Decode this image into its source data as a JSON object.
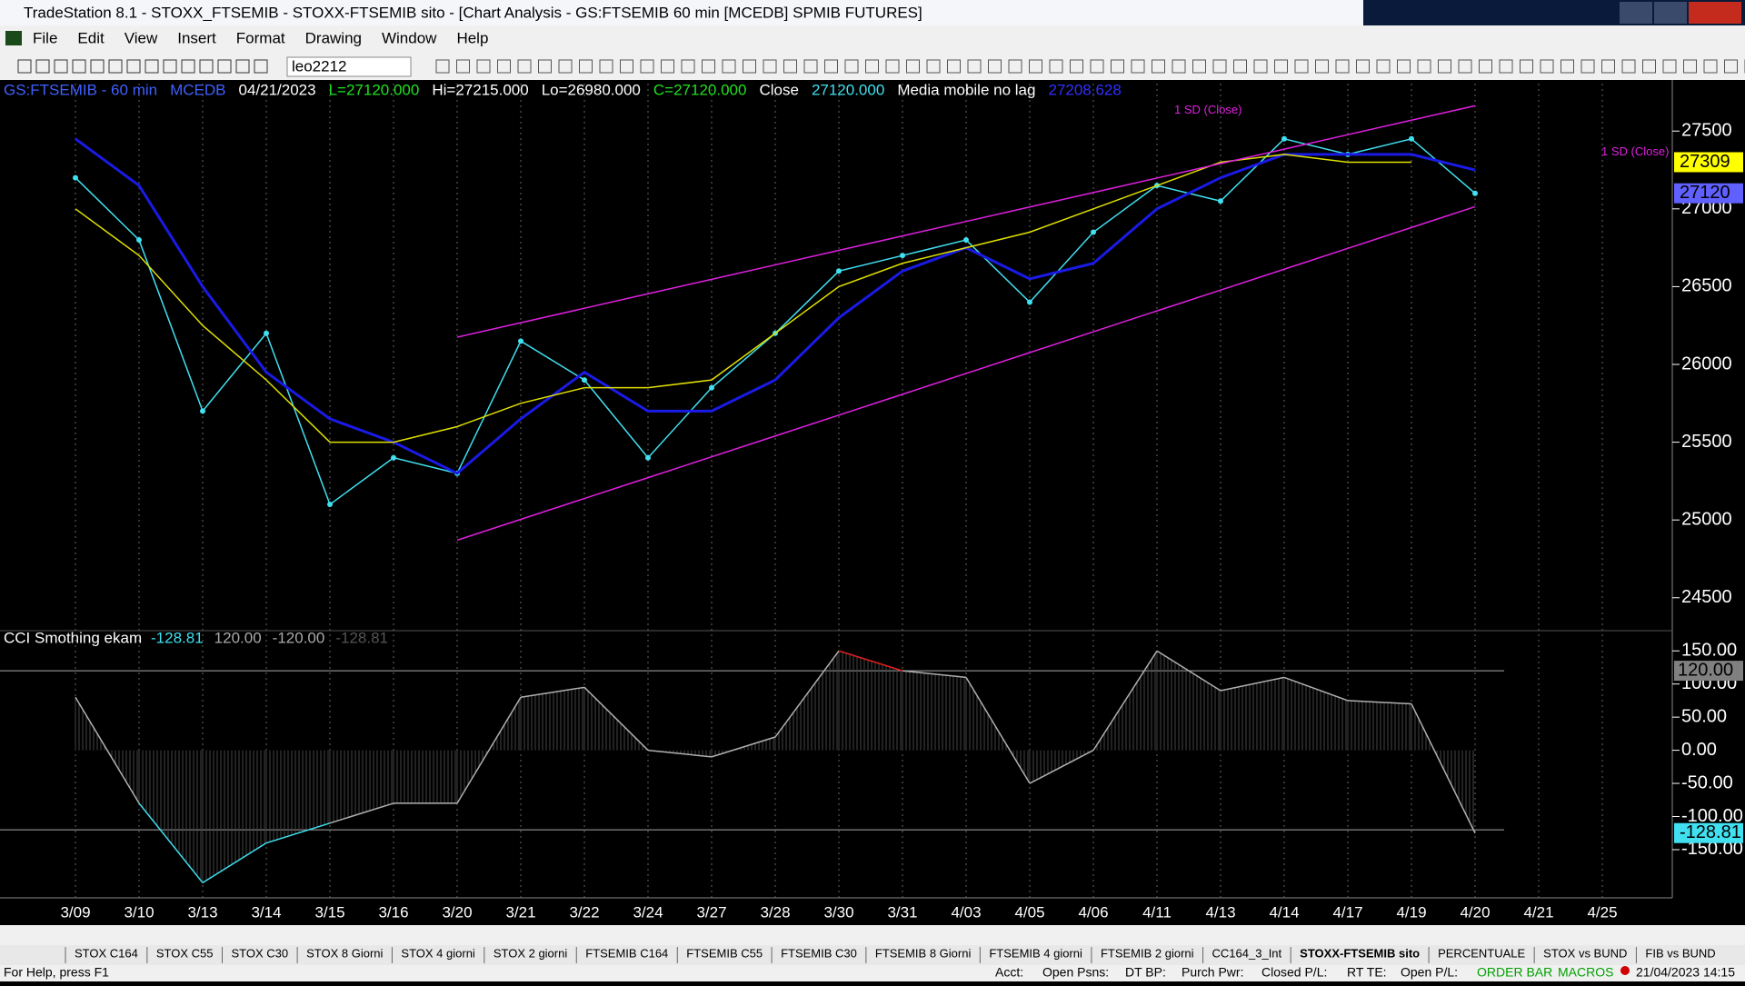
{
  "window": {
    "title": "TradeStation 8.1 - STOXX_FTSEMIB - STOXX-FTSEMIB sito - [Chart Analysis - GS:FTSEMIB  60 min  [MCEDB] SPMIB FUTURES]",
    "menu": [
      "File",
      "Edit",
      "View",
      "Insert",
      "Format",
      "Drawing",
      "Window",
      "Help"
    ],
    "symbol_box": "leo2212",
    "tabs": [
      "STOX C164",
      "STOX C55",
      "STOX  C30",
      "STOX  8 Giorni",
      "STOX 4 giorni",
      "STOX  2 giorni",
      "FTSEMIB C164",
      "FTSEMIB C55",
      "FTSEMIB C30",
      "FTSEMIB  8 Giorni",
      "FTSEMIB  4 giorni",
      "FTSEMIB  2 giorni",
      "CC164_3_Int",
      "STOXX-FTSEMIB sito",
      "PERCENTUALE",
      "STOX vs BUND",
      "FIB vs BUND"
    ],
    "active_tab": "STOXX-FTSEMIB sito",
    "status": [
      "For Help, press F1",
      "Acct:",
      "Open Psns:",
      "DT BP:",
      "Purch Pwr:",
      "Closed P/L:",
      "RT TE:",
      "Open P/L:",
      "ORDER BAR",
      "MACROS",
      "21/04/2023 14:15"
    ]
  },
  "chart_data": [
    {
      "type": "line",
      "panel": "price",
      "header": [
        {
          "text": "GS:FTSEMIB - 60 min",
          "color": "#4060ff"
        },
        {
          "text": "MCEDB",
          "color": "#4060ff"
        },
        {
          "text": "04/21/2023",
          "color": "#ffffff"
        },
        {
          "text": "L=27120.000",
          "color": "#20e020"
        },
        {
          "text": "Hi=27215.000",
          "color": "#ffffff"
        },
        {
          "text": "Lo=26980.000",
          "color": "#ffffff"
        },
        {
          "text": "C=27120.000",
          "color": "#20e020"
        }
      ],
      "categories": [
        "3/09",
        "3/10",
        "3/13",
        "3/14",
        "3/15",
        "3/16",
        "3/20",
        "3/21",
        "3/22",
        "3/24",
        "3/27",
        "3/28",
        "3/30",
        "3/31",
        "4/03",
        "4/05",
        "4/06",
        "4/11",
        "4/13",
        "4/14",
        "4/17",
        "4/19",
        "4/20",
        "4/21",
        "4/25"
      ],
      "series": [
        {
          "name": "Close",
          "color": "#40e0f0",
          "values": [
            27200,
            26800,
            25700,
            26200,
            25100,
            25400,
            25300,
            26150,
            25900,
            25400,
            25850,
            26200,
            26600,
            26700,
            26800,
            26400,
            26850,
            27150,
            27050,
            27450,
            27350,
            27450,
            27100,
            null,
            null
          ],
          "last_label": "27120.000",
          "tag": "27120"
        },
        {
          "name": "Media mobile no lag",
          "color": "#1a1ae6",
          "values": [
            27450,
            27150,
            26500,
            25950,
            25650,
            25500,
            25300,
            25650,
            25950,
            25700,
            25700,
            25900,
            26300,
            26600,
            26750,
            26550,
            26650,
            27000,
            27200,
            27350,
            27350,
            27350,
            27250,
            null,
            null
          ],
          "last_label": "27208.628"
        },
        {
          "color": "#e0e000",
          "values": [
            27000,
            26700,
            26250,
            25900,
            25500,
            25500,
            25600,
            25750,
            25850,
            25850,
            25900,
            26200,
            26500,
            26650,
            26750,
            26850,
            27000,
            27150,
            27300,
            27350,
            27300,
            27300,
            null,
            null,
            null
          ],
          "tag": "27309"
        },
        {
          "name": "1 SD (Close)",
          "color": "#e020e0",
          "values": [
            null,
            null,
            null,
            null,
            null,
            null,
            26175,
            26268,
            26361,
            26454,
            26547,
            26640,
            26733,
            26826,
            26919,
            27012,
            27105,
            27198,
            27291,
            27384,
            27477,
            27570,
            27663,
            null,
            null
          ]
        },
        {
          "name": "1 SD (Close)",
          "color": "#e020e0",
          "values": [
            null,
            null,
            null,
            null,
            null,
            null,
            24870,
            25004,
            25138,
            25272,
            25406,
            25540,
            25674,
            25808,
            25942,
            26076,
            26210,
            26344,
            26478,
            26612,
            26746,
            26880,
            27014,
            null,
            null
          ]
        }
      ],
      "ylim": [
        24300,
        27700
      ],
      "yticks": [
        24500,
        25000,
        25500,
        26000,
        26500,
        27000,
        27500
      ]
    },
    {
      "type": "line",
      "panel": "cci",
      "title": "CCI Smothing ekam",
      "header_values": [
        "-128.81",
        "120.00",
        "-120.00",
        "-128.81"
      ],
      "series": [
        {
          "color": "#b0b0b0",
          "values": [
            80,
            -80,
            -200,
            -140,
            -110,
            -80,
            -80,
            80,
            95,
            0,
            -10,
            20,
            150,
            120,
            110,
            -50,
            0,
            150,
            90,
            110,
            75,
            70,
            -125,
            null,
            null
          ],
          "tag": "-128.81"
        }
      ],
      "levels": [
        {
          "value": 120,
          "label": "120.00"
        },
        {
          "value": -120,
          "label": "-120.00"
        }
      ],
      "ylim": [
        -220,
        175
      ],
      "yticks": [
        {
          "value": -150,
          "label": "-150.00"
        },
        {
          "value": -100,
          "label": "-100.00"
        },
        {
          "value": -50,
          "label": "-50.00"
        },
        {
          "value": 0,
          "label": "0.00"
        },
        {
          "value": 50,
          "label": "50.00"
        },
        {
          "value": 100,
          "label": "100.00"
        },
        {
          "value": 150,
          "label": "150.00"
        }
      ]
    }
  ]
}
